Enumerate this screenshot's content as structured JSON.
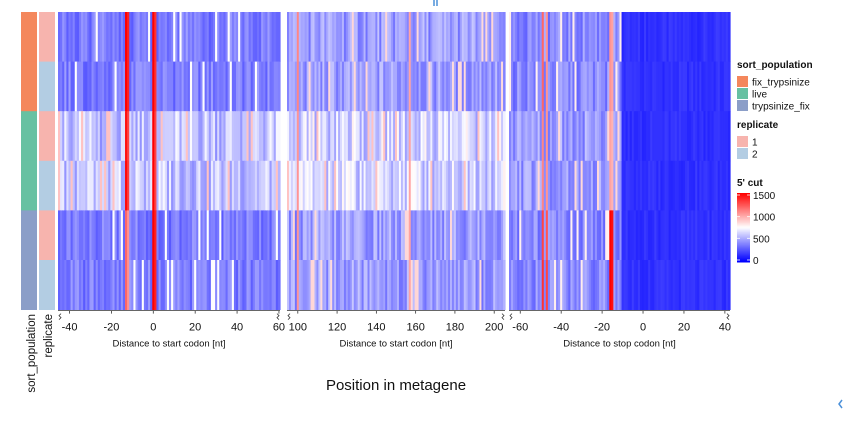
{
  "chart_data": {
    "type": "heatmap",
    "title": "",
    "xlabel": "Position in metagene",
    "rows": [
      {
        "sort_population": "fix_trypsinize",
        "replicate": "1"
      },
      {
        "sort_population": "fix_trypsinize",
        "replicate": "2"
      },
      {
        "sort_population": "live",
        "replicate": "1"
      },
      {
        "sort_population": "live",
        "replicate": "2"
      },
      {
        "sort_population": "trypsinize_fix",
        "replicate": "1"
      },
      {
        "sort_population": "trypsinize_fix",
        "replicate": "2"
      }
    ],
    "row_annotations": [
      "sort_population",
      "replicate"
    ],
    "panels": [
      {
        "xlabel": "Distance to start codon [nt]",
        "xlim": [
          -45,
          60
        ],
        "ticks": [
          -40,
          -20,
          0,
          20,
          40,
          60
        ],
        "peaks": [
          {
            "x": -13,
            "values": [
              1500,
              1500,
              1400,
              1450,
              900,
              900
            ]
          },
          {
            "x": -12,
            "values": [
              1300,
              1300,
              1100,
              1150,
              700,
              700
            ]
          },
          {
            "x": 0,
            "values": [
              1500,
              1500,
              1500,
              1500,
              1500,
              1500
            ]
          },
          {
            "x": 1,
            "values": [
              1200,
              1200,
              1100,
              1100,
              1300,
              1300
            ]
          }
        ]
      },
      {
        "xlabel": "Distance to start codon [nt]",
        "xlim": [
          95,
          205
        ],
        "ticks": [
          100,
          120,
          140,
          160,
          180,
          200
        ],
        "peaks": [
          {
            "x": 100,
            "values": [
              800,
              800,
              700,
              700,
              700,
              700
            ]
          },
          {
            "x": 157,
            "values": [
              600,
              600,
              600,
              600,
              600,
              600
            ]
          }
        ]
      },
      {
        "xlabel": "Distance to stop codon [nt]",
        "xlim": [
          -65,
          42
        ],
        "ticks": [
          -60,
          -40,
          -20,
          0,
          20,
          40
        ],
        "peaks": [
          {
            "x": -49,
            "values": [
              900,
              900,
              800,
              800,
              1100,
              1200
            ]
          },
          {
            "x": -47,
            "values": [
              700,
              700,
              700,
              700,
              1000,
              1100
            ]
          },
          {
            "x": -16,
            "values": [
              700,
              700,
              600,
              600,
              1500,
              1500
            ]
          },
          {
            "x": -15,
            "values": [
              600,
              600,
              500,
              500,
              1400,
              1400
            ]
          }
        ]
      }
    ],
    "color_scale": {
      "title": "5' cut",
      "ticks": [
        1500,
        1000,
        500,
        0
      ],
      "range": [
        0,
        1500
      ],
      "colors": {
        "low": "#0000ff",
        "mid": "#ffffff",
        "high": "#ff0000"
      }
    },
    "row_levels": {
      "live": {
        "left": 0.78,
        "mid": 0.85,
        "right": 0.62
      },
      "other": {
        "left": 0.5,
        "mid": 0.62,
        "right": 0.55
      },
      "tail": 0.07
    },
    "legend": [
      {
        "title": "sort_population",
        "items": [
          {
            "label": "fix_trypsinize",
            "color": "#f4875c"
          },
          {
            "label": "live",
            "color": "#67c1a2"
          },
          {
            "label": "trypsinize_fix",
            "color": "#8b9ec8"
          }
        ]
      },
      {
        "title": "replicate",
        "items": [
          {
            "label": "1",
            "color": "#f7b4ae"
          },
          {
            "label": "2",
            "color": "#b3cde3"
          }
        ]
      }
    ],
    "grid": false,
    "legend_position": "right"
  }
}
